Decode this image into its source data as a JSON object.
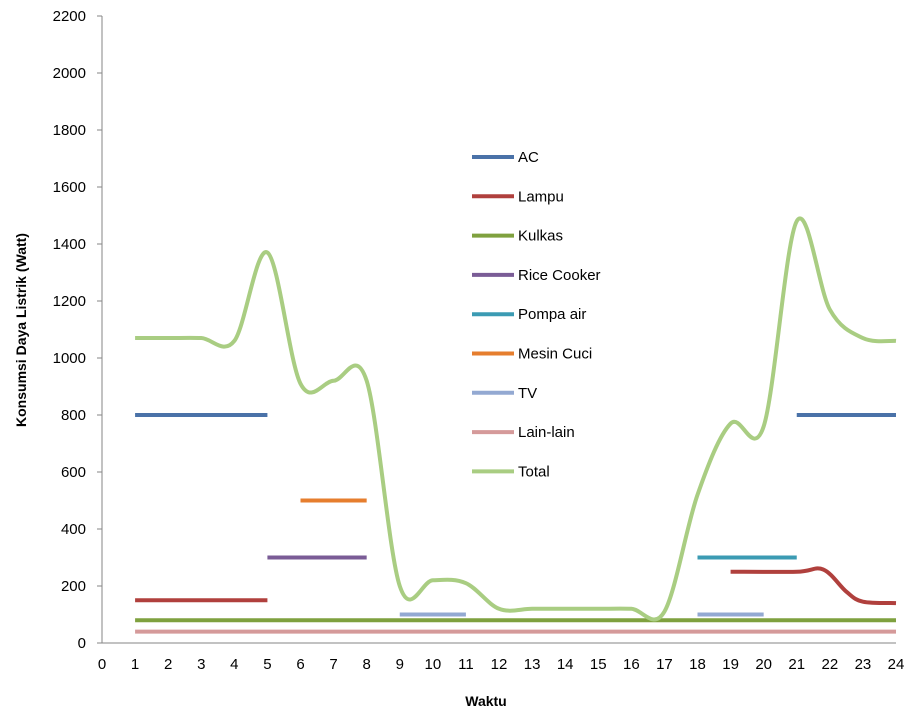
{
  "chart_data": {
    "type": "line",
    "title": "",
    "xlabel": "Waktu",
    "ylabel": "Konsumsi Daya Listrik (Watt)",
    "xlim": [
      0,
      24
    ],
    "ylim": [
      0,
      2200
    ],
    "x_ticks": [
      0,
      1,
      2,
      3,
      4,
      5,
      6,
      7,
      8,
      9,
      10,
      11,
      12,
      13,
      14,
      15,
      16,
      17,
      18,
      19,
      20,
      21,
      22,
      23,
      24
    ],
    "y_ticks": [
      0,
      200,
      400,
      600,
      800,
      1000,
      1200,
      1400,
      1600,
      1800,
      2000,
      2200
    ],
    "grid": false,
    "legend_position": "center",
    "series": [
      {
        "name": "AC",
        "color": "#4A72A8",
        "segments": [
          [
            [
              1,
              800
            ],
            [
              5,
              800
            ]
          ],
          [
            [
              21,
              800
            ],
            [
              24,
              800
            ]
          ]
        ]
      },
      {
        "name": "Lampu",
        "color": "#B0403D",
        "segments": [
          [
            [
              1,
              150
            ],
            [
              5,
              150
            ]
          ],
          [
            [
              19,
              250
            ],
            [
              21,
              250
            ],
            [
              21.8,
              258
            ],
            [
              22.5,
              180
            ],
            [
              23,
              145
            ],
            [
              24,
              140
            ]
          ]
        ]
      },
      {
        "name": "Kulkas",
        "color": "#7FA13F",
        "segments": [
          [
            [
              1,
              80
            ],
            [
              24,
              80
            ]
          ]
        ]
      },
      {
        "name": "Rice Cooker",
        "color": "#7A5C96",
        "segments": [
          [
            [
              5,
              300
            ],
            [
              8,
              300
            ]
          ]
        ]
      },
      {
        "name": "Pompa air",
        "color": "#3B9BB3",
        "segments": [
          [
            [
              18,
              300
            ],
            [
              21,
              300
            ]
          ]
        ]
      },
      {
        "name": "Mesin Cuci",
        "color": "#E67E2E",
        "segments": [
          [
            [
              6,
              500
            ],
            [
              8,
              500
            ]
          ]
        ]
      },
      {
        "name": "TV",
        "color": "#93A9D2",
        "segments": [
          [
            [
              9,
              100
            ],
            [
              11,
              100
            ]
          ],
          [
            [
              18,
              100
            ],
            [
              20,
              100
            ]
          ]
        ]
      },
      {
        "name": "Lain-lain",
        "color": "#D59A9A",
        "segments": [
          [
            [
              1,
              40
            ],
            [
              24,
              40
            ]
          ]
        ]
      },
      {
        "name": "Total",
        "color": "#A9CD82",
        "smooth": true,
        "segments": [
          [
            [
              1,
              1070
            ],
            [
              2,
              1070
            ],
            [
              3,
              1070
            ],
            [
              4,
              1060
            ],
            [
              5,
              1370
            ],
            [
              6,
              910
            ],
            [
              7,
              920
            ],
            [
              8,
              920
            ],
            [
              9,
              200
            ],
            [
              10,
              220
            ],
            [
              11,
              210
            ],
            [
              12,
              120
            ],
            [
              13,
              120
            ],
            [
              14,
              120
            ],
            [
              15,
              120
            ],
            [
              16,
              120
            ],
            [
              17,
              110
            ],
            [
              18,
              520
            ],
            [
              19,
              770
            ],
            [
              20,
              760
            ],
            [
              21,
              1480
            ],
            [
              22,
              1170
            ],
            [
              23,
              1070
            ],
            [
              24,
              1060
            ]
          ]
        ]
      }
    ]
  }
}
